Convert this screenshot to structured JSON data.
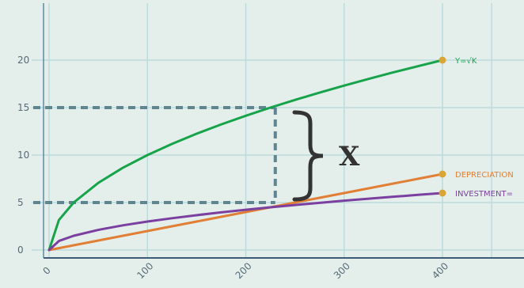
{
  "chart_data": {
    "type": "line",
    "x": [
      0,
      10,
      25,
      50,
      75,
      100,
      125,
      150,
      175,
      200,
      225,
      250,
      275,
      300,
      325,
      350,
      375,
      400
    ],
    "series": [
      {
        "name": "Y=√K",
        "color": "#17a34a",
        "values": [
          0,
          3.16,
          5.0,
          7.07,
          8.66,
          10.0,
          11.18,
          12.25,
          13.23,
          14.14,
          15.0,
          15.81,
          16.58,
          17.32,
          18.03,
          18.71,
          19.36,
          20.0
        ]
      },
      {
        "name": "DEPRECIATION",
        "color": "#e07f35",
        "values": [
          0,
          0.2,
          0.5,
          1.0,
          1.5,
          2.0,
          2.5,
          3.0,
          3.5,
          4.0,
          4.5,
          5.0,
          5.5,
          6.0,
          6.5,
          7.0,
          7.5,
          8.0
        ]
      },
      {
        "name": "INVESTMENT=",
        "color": "#7b3fa0",
        "values": [
          0,
          0.95,
          1.5,
          2.12,
          2.6,
          3.0,
          3.35,
          3.67,
          3.97,
          4.24,
          4.5,
          4.74,
          4.97,
          5.2,
          5.41,
          5.61,
          5.81,
          6.0
        ]
      }
    ],
    "x_ticks": [
      "0",
      "100",
      "200",
      "300",
      "400"
    ],
    "y_ticks": [
      "0",
      "5",
      "10",
      "15",
      "20"
    ],
    "xlim": [
      0,
      450
    ],
    "ylim": [
      0,
      24
    ],
    "grid": true,
    "legend": "right-end labels",
    "guides": {
      "x": 230,
      "y_low": 5,
      "y_high": 15
    },
    "annotation": "X"
  }
}
